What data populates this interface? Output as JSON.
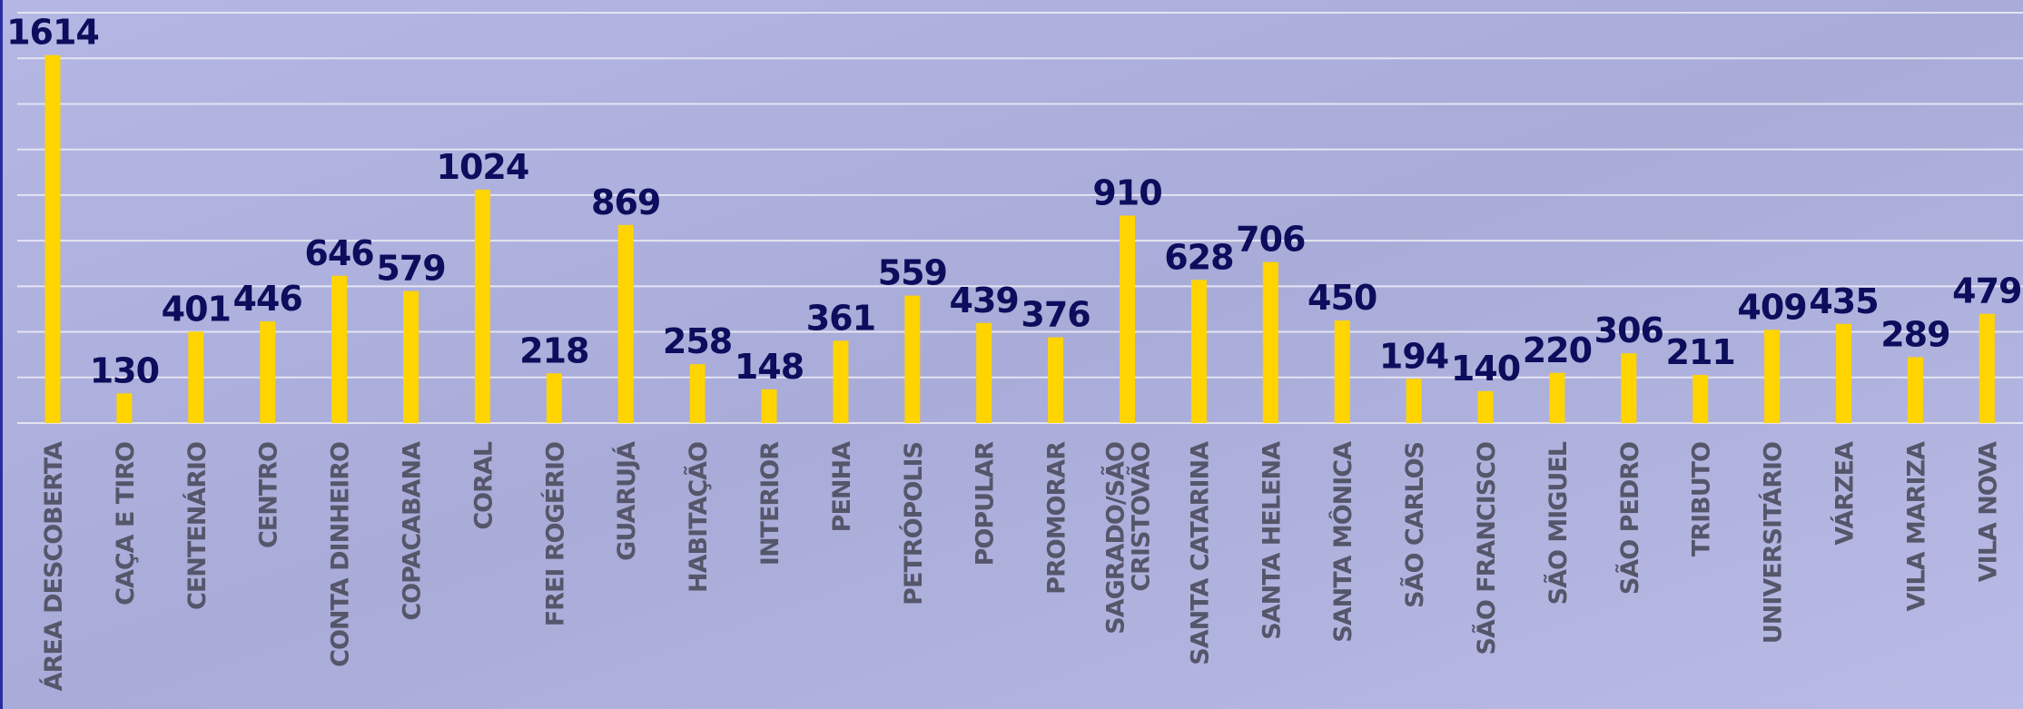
{
  "chart_data": {
    "type": "bar",
    "categories": [
      "ÁREA DESCOBERTA",
      "CAÇA E TIRO",
      "CENTENÁRIO",
      "CENTRO",
      "CONTA DINHEIRO",
      "COPACABANA",
      "CORAL",
      "FREI ROGÉRIO",
      "GUARUJÁ",
      "HABITAÇÃO",
      "INTERIOR",
      "PENHA",
      "PETRÓPOLIS",
      "POPULAR",
      "PROMORAR",
      "SAGRADO/SÃO CRISTOVÃO",
      "SANTA CATARINA",
      "SANTA HELENA",
      "SANTA MÔNICA",
      "SÃO CARLOS",
      "SÃO FRANCISCO",
      "SÃO MIGUEL",
      "SÃO PEDRO",
      "TRIBUTO",
      "UNIVERSITÁRIO",
      "VÁRZEA",
      "VILA MARIZA",
      "VILA NOVA"
    ],
    "values": [
      1614,
      130,
      401,
      446,
      646,
      579,
      1024,
      218,
      869,
      258,
      148,
      361,
      559,
      439,
      376,
      910,
      628,
      706,
      450,
      194,
      140,
      220,
      306,
      211,
      409,
      435,
      289,
      479
    ],
    "color": "#ffd400",
    "ylim": [
      0,
      1800
    ],
    "yticks": [
      0,
      200,
      400,
      600,
      800,
      1000,
      1200,
      1400,
      1600,
      1800
    ],
    "grid": true
  }
}
